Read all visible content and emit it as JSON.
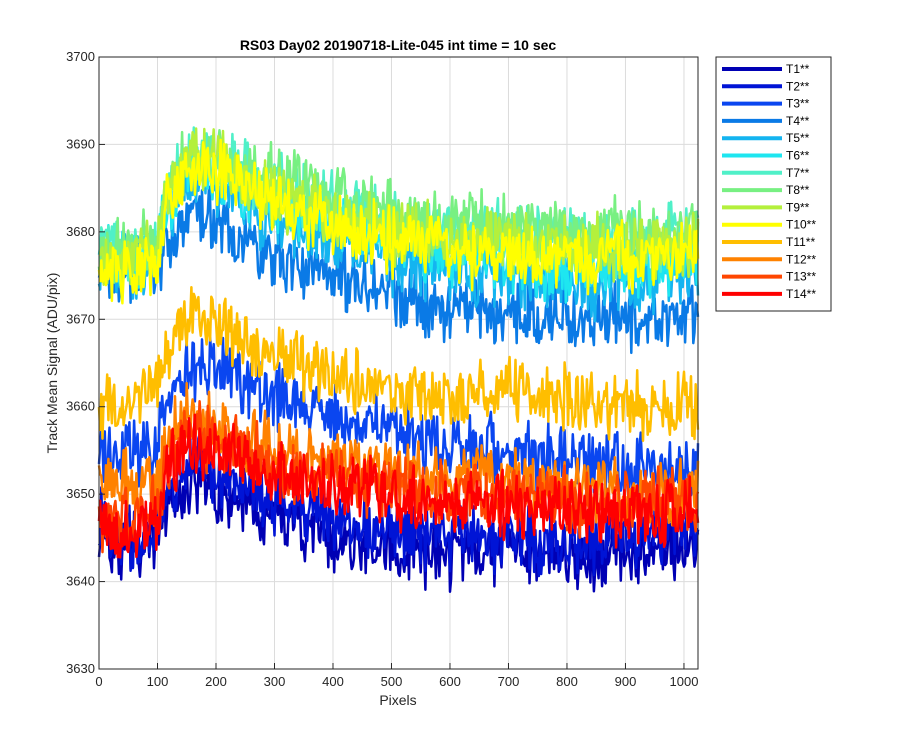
{
  "chart_data": {
    "type": "line",
    "title": "RS03 Day02 20190718-Lite-045 int time = 10 sec",
    "xlabel": "Pixels",
    "ylabel": "Track Mean Signal (ADU/pix)",
    "xlim": [
      0,
      1024
    ],
    "ylim": [
      3630,
      3700
    ],
    "xticks": [
      0,
      100,
      200,
      300,
      400,
      500,
      600,
      700,
      800,
      900,
      1000
    ],
    "yticks": [
      3630,
      3640,
      3650,
      3660,
      3670,
      3680,
      3690,
      3700
    ],
    "grid": true,
    "legend_position": "outside-top-right",
    "x": [
      0,
      50,
      100,
      110,
      150,
      200,
      250,
      300,
      400,
      500,
      600,
      700,
      800,
      900,
      1024
    ],
    "series": [
      {
        "name": "T1**",
        "color": "#0000b4",
        "values": [
          3645,
          3644,
          3645,
          3648,
          3651,
          3650,
          3649,
          3647,
          3645,
          3644,
          3643,
          3644,
          3643,
          3643,
          3644
        ]
      },
      {
        "name": "T2**",
        "color": "#0014d6",
        "values": [
          3647,
          3645,
          3646,
          3650,
          3654,
          3653,
          3651,
          3649,
          3647,
          3646,
          3645,
          3645,
          3644,
          3645,
          3646
        ]
      },
      {
        "name": "T3**",
        "color": "#0a46f0",
        "values": [
          3654,
          3655,
          3655,
          3660,
          3664,
          3665,
          3663,
          3661,
          3659,
          3657,
          3656,
          3655,
          3654,
          3653,
          3653
        ]
      },
      {
        "name": "T4**",
        "color": "#0a7ae6",
        "values": [
          3676,
          3675,
          3676,
          3679,
          3682,
          3682,
          3679,
          3677,
          3675,
          3673,
          3671,
          3671,
          3670,
          3670,
          3670
        ]
      },
      {
        "name": "T5**",
        "color": "#14b4f0",
        "values": [
          3676,
          3676,
          3677,
          3681,
          3686,
          3686,
          3683,
          3681,
          3679,
          3677,
          3675,
          3675,
          3674,
          3674,
          3675
        ]
      },
      {
        "name": "T6**",
        "color": "#1ee6f0",
        "values": [
          3677,
          3677,
          3678,
          3682,
          3687,
          3687,
          3685,
          3683,
          3681,
          3679,
          3677,
          3677,
          3676,
          3676,
          3677
        ]
      },
      {
        "name": "T7**",
        "color": "#50f0c8",
        "values": [
          3678,
          3678,
          3679,
          3684,
          3689,
          3689,
          3687,
          3685,
          3683,
          3681,
          3680,
          3680,
          3679,
          3679,
          3680
        ]
      },
      {
        "name": "T8**",
        "color": "#78f082",
        "values": [
          3677,
          3678,
          3679,
          3684,
          3689,
          3689,
          3687,
          3686,
          3684,
          3682,
          3681,
          3681,
          3680,
          3680,
          3680
        ]
      },
      {
        "name": "T9**",
        "color": "#b4f03c",
        "values": [
          3676,
          3677,
          3678,
          3683,
          3688,
          3688,
          3686,
          3684,
          3682,
          3680,
          3679,
          3679,
          3678,
          3678,
          3679
        ]
      },
      {
        "name": "T10**",
        "color": "#ffff00",
        "values": [
          3675,
          3676,
          3677,
          3682,
          3687,
          3687,
          3685,
          3683,
          3681,
          3679,
          3678,
          3677,
          3677,
          3677,
          3677
        ]
      },
      {
        "name": "T11**",
        "color": "#ffbe00",
        "values": [
          3660,
          3661,
          3662,
          3666,
          3670,
          3670,
          3668,
          3666,
          3664,
          3662,
          3661,
          3662,
          3661,
          3660,
          3660
        ]
      },
      {
        "name": "T12**",
        "color": "#ff8200",
        "values": [
          3651,
          3651,
          3652,
          3656,
          3659,
          3658,
          3656,
          3655,
          3654,
          3653,
          3652,
          3652,
          3651,
          3650,
          3650
        ]
      },
      {
        "name": "T13**",
        "color": "#ff4600",
        "values": [
          3647,
          3647,
          3648,
          3653,
          3657,
          3656,
          3655,
          3653,
          3652,
          3651,
          3650,
          3650,
          3649,
          3649,
          3649
        ]
      },
      {
        "name": "T14**",
        "color": "#ff0000",
        "values": [
          3646,
          3646,
          3647,
          3652,
          3656,
          3655,
          3654,
          3652,
          3651,
          3650,
          3649,
          3649,
          3648,
          3648,
          3648
        ]
      }
    ]
  }
}
